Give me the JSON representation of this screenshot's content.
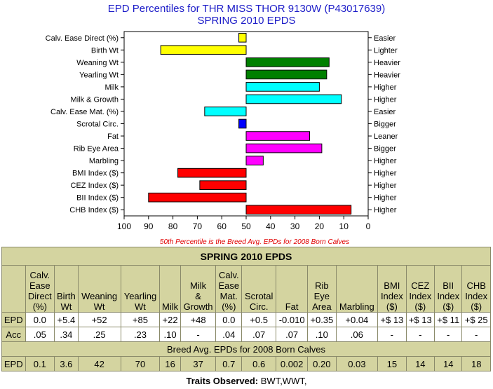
{
  "title_line1": "EPD Percentiles for THR MISS THOR 9130W (P43017639)",
  "title_line2": "SPRING 2010 EPDS",
  "chart_data": {
    "type": "bar",
    "orientation": "horizontal",
    "xlim": [
      100,
      0
    ],
    "xticks": [
      "100",
      "90",
      "80",
      "70",
      "60",
      "50",
      "40",
      "30",
      "20",
      "10",
      "0"
    ],
    "baseline": 50,
    "note": "50th Percentile is the Breed Avg. EPDs for 2008 Born Calves",
    "bars": [
      {
        "trait": "Calv. Ease Direct (%)",
        "percentile": 53,
        "direction": "Easier",
        "color": "#ffff00"
      },
      {
        "trait": "Birth Wt",
        "percentile": 85,
        "direction": "Lighter",
        "color": "#ffff00"
      },
      {
        "trait": "Weaning Wt",
        "percentile": 16,
        "direction": "Heavier",
        "color": "#008000"
      },
      {
        "trait": "Yearling Wt",
        "percentile": 17,
        "direction": "Heavier",
        "color": "#008000"
      },
      {
        "trait": "Milk",
        "percentile": 20,
        "direction": "Higher",
        "color": "#00ffff"
      },
      {
        "trait": "Milk & Growth",
        "percentile": 11,
        "direction": "Higher",
        "color": "#00ffff"
      },
      {
        "trait": "Calv. Ease Mat. (%)",
        "percentile": 67,
        "direction": "Easier",
        "color": "#00ffff"
      },
      {
        "trait": "Scrotal Circ.",
        "percentile": 53,
        "direction": "Bigger",
        "color": "#0000ff"
      },
      {
        "trait": "Fat",
        "percentile": 24,
        "direction": "Leaner",
        "color": "#ff00ff"
      },
      {
        "trait": "Rib Eye Area",
        "percentile": 19,
        "direction": "Bigger",
        "color": "#ff00ff"
      },
      {
        "trait": "Marbling",
        "percentile": 43,
        "direction": "Higher",
        "color": "#ff00ff"
      },
      {
        "trait": "BMI Index ($)",
        "percentile": 78,
        "direction": "Higher",
        "color": "#ff0000"
      },
      {
        "trait": "CEZ Index ($)",
        "percentile": 69,
        "direction": "Higher",
        "color": "#ff0000"
      },
      {
        "trait": "BII Index ($)",
        "percentile": 90,
        "direction": "Higher",
        "color": "#ff0000"
      },
      {
        "trait": "CHB Index ($)",
        "percentile": 7,
        "direction": "Higher",
        "color": "#ff0000"
      }
    ]
  },
  "table": {
    "title": "SPRING 2010 EPDS",
    "columns": [
      [
        "Calv.",
        "Ease",
        "Direct",
        "(%)"
      ],
      [
        "Birth",
        "Wt"
      ],
      [
        "Weaning",
        "Wt"
      ],
      [
        "Yearling",
        "Wt"
      ],
      [
        "Milk"
      ],
      [
        "Milk",
        "&",
        "Growth"
      ],
      [
        "Calv.",
        "Ease",
        "Mat.",
        "(%)"
      ],
      [
        "Scrotal",
        "Circ."
      ],
      [
        "Fat"
      ],
      [
        "Rib",
        "Eye",
        "Area"
      ],
      [
        "Marbling"
      ],
      [
        "BMI",
        "Index",
        "($)"
      ],
      [
        "CEZ",
        "Index",
        "($)"
      ],
      [
        "BII",
        "Index",
        "($)"
      ],
      [
        "CHB",
        "Index",
        "($)"
      ]
    ],
    "epd_label": "EPD",
    "epd": [
      "0.0",
      "+5.4",
      "+52",
      "+85",
      "+22",
      "+48",
      "0.0",
      "+0.5",
      "-0.010",
      "+0.35",
      "+0.04",
      "+$ 13",
      "+$ 13",
      "+$ 11",
      "+$ 25"
    ],
    "acc_label": "Acc",
    "acc": [
      ".05",
      ".34",
      ".25",
      ".23",
      ".10",
      "-",
      ".04",
      ".07",
      ".07",
      ".10",
      ".06",
      "-",
      "-",
      "-",
      "-"
    ],
    "breed_avg_title": "Breed Avg. EPDs for 2008 Born Calves",
    "breed_label": "EPD",
    "breed_avg": [
      "0.1",
      "3.6",
      "42",
      "70",
      "16",
      "37",
      "0.7",
      "0.6",
      "0.002",
      "0.20",
      "0.03",
      "15",
      "14",
      "14",
      "18"
    ]
  },
  "traits_observed_label": "Traits Observed:",
  "traits_observed_value": "BWT,WWT,"
}
